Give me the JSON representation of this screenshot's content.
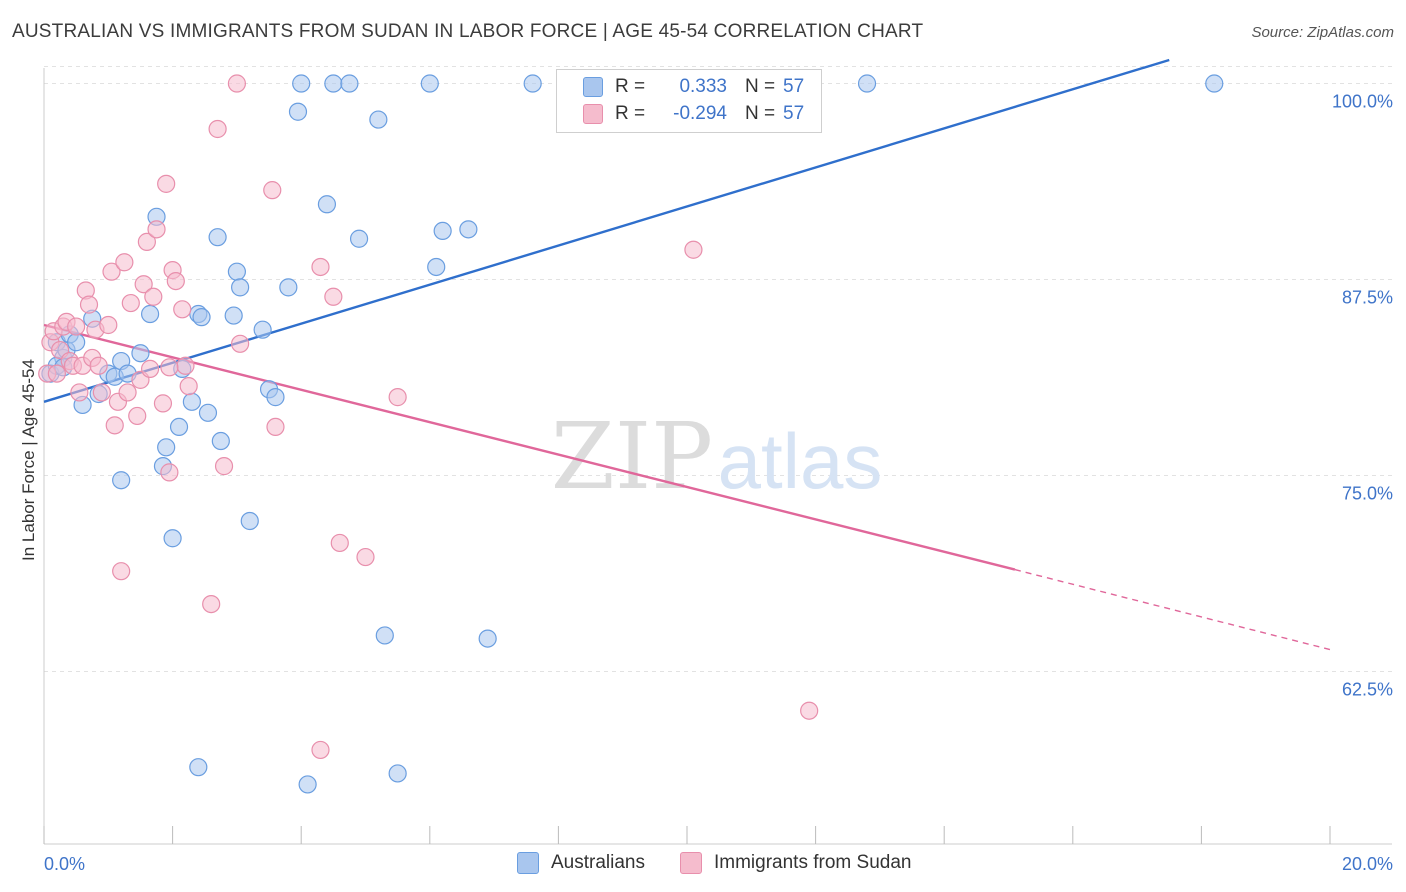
{
  "title": "AUSTRALIAN VS IMMIGRANTS FROM SUDAN IN LABOR FORCE | AGE 45-54 CORRELATION CHART",
  "source": "Source: ZipAtlas.com",
  "watermark": {
    "part1": "ZIP",
    "part2": "atlas"
  },
  "colors": {
    "blue_fill": "#a9c6ee",
    "blue_stroke": "#6a9ee0",
    "blue_line": "#2f6fcc",
    "pink_fill": "#f5bccd",
    "pink_stroke": "#e88fac",
    "pink_line": "#e0679a",
    "tick_label": "#3f74c9",
    "grid": "#e2e2e2"
  },
  "legend": {
    "rows": [
      {
        "swatch": "blue",
        "r_label": "R =",
        "r_value": "0.333",
        "n_label": "N =",
        "n_value": "57"
      },
      {
        "swatch": "pink",
        "r_label": "R =",
        "r_value": "-0.294",
        "n_label": "N =",
        "n_value": "57"
      }
    ]
  },
  "bottom_legend": {
    "australians": "Australians",
    "sudan": "Immigrants from Sudan"
  },
  "chart_data": {
    "type": "scatter",
    "title": "AUSTRALIAN VS IMMIGRANTS FROM SUDAN IN LABOR FORCE | AGE 45-54 CORRELATION CHART",
    "xlabel": "",
    "ylabel": "In Labor Force | Age 45-54",
    "xlim": [
      0,
      20
    ],
    "ylim": [
      51.5,
      101.5
    ],
    "x_tick_labels": [
      "0.0%",
      "20.0%"
    ],
    "y_ticks": [
      62.5,
      75.0,
      87.5,
      100.0
    ],
    "y_tick_labels": [
      "62.5%",
      "75.0%",
      "87.5%",
      "100.0%"
    ],
    "grid": true,
    "legend_position": "top-center",
    "series": [
      {
        "name": "Australians",
        "color": "blue",
        "trend": {
          "x": [
            0.0,
            17.5
          ],
          "y": [
            79.7,
            101.5
          ]
        },
        "points": [
          [
            0.1,
            81.5
          ],
          [
            0.2,
            83.5
          ],
          [
            0.3,
            82.5
          ],
          [
            0.35,
            83.0
          ],
          [
            0.4,
            84.0
          ],
          [
            0.5,
            83.5
          ],
          [
            0.6,
            79.5
          ],
          [
            0.75,
            85.0
          ],
          [
            0.85,
            80.2
          ],
          [
            1.0,
            81.5
          ],
          [
            1.1,
            81.3
          ],
          [
            1.2,
            82.3
          ],
          [
            1.3,
            81.5
          ],
          [
            1.5,
            82.8
          ],
          [
            1.65,
            85.3
          ],
          [
            1.75,
            91.5
          ],
          [
            1.85,
            75.6
          ],
          [
            1.9,
            76.8
          ],
          [
            2.0,
            71.0
          ],
          [
            2.1,
            78.1
          ],
          [
            2.15,
            81.8
          ],
          [
            2.3,
            79.7
          ],
          [
            2.4,
            85.3
          ],
          [
            2.45,
            85.1
          ],
          [
            2.55,
            79.0
          ],
          [
            2.7,
            90.2
          ],
          [
            2.75,
            77.2
          ],
          [
            2.95,
            85.2
          ],
          [
            3.0,
            88.0
          ],
          [
            3.05,
            87.0
          ],
          [
            3.2,
            72.1
          ],
          [
            3.4,
            84.3
          ],
          [
            3.5,
            80.5
          ],
          [
            3.6,
            80.0
          ],
          [
            3.8,
            87.0
          ],
          [
            3.95,
            98.2
          ],
          [
            4.0,
            100.0
          ],
          [
            4.4,
            92.3
          ],
          [
            4.5,
            100.0
          ],
          [
            4.75,
            100.0
          ],
          [
            4.9,
            90.1
          ],
          [
            5.2,
            97.7
          ],
          [
            6.0,
            100.0
          ],
          [
            6.1,
            88.3
          ],
          [
            6.2,
            90.6
          ],
          [
            6.6,
            90.7
          ],
          [
            7.6,
            100.0
          ],
          [
            12.8,
            100.0
          ],
          [
            18.2,
            100.0
          ],
          [
            0.2,
            82.0
          ],
          [
            1.2,
            74.7
          ],
          [
            5.3,
            64.8
          ],
          [
            6.9,
            64.6
          ],
          [
            2.4,
            56.4
          ],
          [
            4.1,
            55.3
          ],
          [
            5.5,
            56.0
          ],
          [
            0.3,
            81.9
          ]
        ]
      },
      {
        "name": "Immigrants from Sudan",
        "color": "pink",
        "trend": {
          "x": [
            0.0,
            15.1
          ],
          "y": [
            84.6,
            69.0
          ]
        },
        "trend_dashed": {
          "x": [
            15.1,
            20.0
          ],
          "y": [
            69.0,
            63.9
          ]
        },
        "points": [
          [
            0.05,
            81.5
          ],
          [
            0.1,
            83.5
          ],
          [
            0.15,
            84.2
          ],
          [
            0.2,
            81.5
          ],
          [
            0.25,
            83.0
          ],
          [
            0.3,
            84.5
          ],
          [
            0.35,
            84.8
          ],
          [
            0.4,
            82.3
          ],
          [
            0.45,
            82.0
          ],
          [
            0.5,
            84.5
          ],
          [
            0.55,
            80.3
          ],
          [
            0.6,
            82.0
          ],
          [
            0.65,
            86.8
          ],
          [
            0.7,
            85.9
          ],
          [
            0.75,
            82.5
          ],
          [
            0.8,
            84.3
          ],
          [
            0.85,
            82.0
          ],
          [
            0.9,
            80.3
          ],
          [
            1.0,
            84.6
          ],
          [
            1.05,
            88.0
          ],
          [
            1.1,
            78.2
          ],
          [
            1.15,
            79.7
          ],
          [
            1.25,
            88.6
          ],
          [
            1.3,
            80.3
          ],
          [
            1.35,
            86.0
          ],
          [
            1.45,
            78.8
          ],
          [
            1.5,
            81.1
          ],
          [
            1.55,
            87.2
          ],
          [
            1.6,
            89.9
          ],
          [
            1.65,
            81.8
          ],
          [
            1.7,
            86.4
          ],
          [
            1.75,
            90.7
          ],
          [
            1.85,
            79.6
          ],
          [
            1.9,
            93.6
          ],
          [
            1.95,
            75.2
          ],
          [
            2.0,
            88.1
          ],
          [
            2.05,
            87.4
          ],
          [
            2.15,
            85.6
          ],
          [
            2.2,
            82.0
          ],
          [
            2.25,
            80.7
          ],
          [
            2.7,
            97.1
          ],
          [
            2.8,
            75.6
          ],
          [
            3.0,
            100.0
          ],
          [
            3.05,
            83.4
          ],
          [
            3.55,
            93.2
          ],
          [
            3.6,
            78.1
          ],
          [
            4.3,
            88.3
          ],
          [
            4.5,
            86.4
          ],
          [
            4.6,
            70.7
          ],
          [
            5.0,
            69.8
          ],
          [
            5.5,
            80.0
          ],
          [
            10.1,
            89.4
          ],
          [
            11.9,
            60.0
          ],
          [
            1.2,
            68.9
          ],
          [
            2.6,
            66.8
          ],
          [
            4.3,
            57.5
          ],
          [
            1.95,
            81.9
          ]
        ]
      }
    ]
  }
}
